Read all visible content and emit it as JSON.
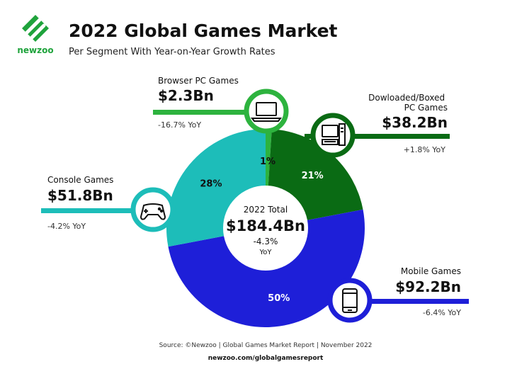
{
  "logo": {
    "wordmark": "newzoo"
  },
  "header": {
    "title": "2022 Global Games Market",
    "subtitle": "Per Segment With Year-on-Year Growth Rates"
  },
  "center": {
    "label": "2022 Total",
    "value": "$184.4Bn",
    "growth": "-4.3%",
    "growth_unit": "YoY"
  },
  "chart_data": {
    "type": "pie",
    "title": "2022 Global Games Market",
    "subtitle": "Per Segment With Year-on-Year Growth Rates",
    "total": 184.4,
    "total_growth_pct": -4.3,
    "unit": "Bn USD",
    "series": [
      {
        "name": "Browser PC Games",
        "value_text": "$2.3Bn",
        "value": 2.3,
        "share_pct": 1,
        "share_text": "1%",
        "yoy_pct": -16.7,
        "yoy_text": "-16.7% YoY",
        "color": "#2DB33E",
        "icon": "laptop-icon"
      },
      {
        "name": "Dowloaded/Boxed PC Games",
        "value_text": "$38.2Bn",
        "value": 38.2,
        "share_pct": 21,
        "share_text": "21%",
        "yoy_pct": 1.8,
        "yoy_text": "+1.8% YoY",
        "color": "#0A6B14",
        "icon": "desktop-pc-icon"
      },
      {
        "name": "Mobile Games",
        "value_text": "$92.2Bn",
        "value": 92.2,
        "share_pct": 50,
        "share_text": "50%",
        "yoy_pct": -6.4,
        "yoy_text": "-6.4% YoY",
        "color": "#1E1FD8",
        "icon": "smartphone-icon"
      },
      {
        "name": "Console Games",
        "value_text": "$51.8Bn",
        "value": 51.8,
        "share_pct": 28,
        "share_text": "28%",
        "yoy_pct": -4.2,
        "yoy_text": "-4.2% YoY",
        "color": "#1DBDB9",
        "icon": "gamepad-icon"
      }
    ],
    "legend": "callouts"
  },
  "footer": {
    "source": "Source: ©Newzoo | Global Games Market Report | November 2022",
    "url": "newzoo.com/globalgamesreport"
  },
  "colors": {
    "brand_green": "#1FA33C",
    "text": "#111111",
    "muted": "#444444"
  }
}
